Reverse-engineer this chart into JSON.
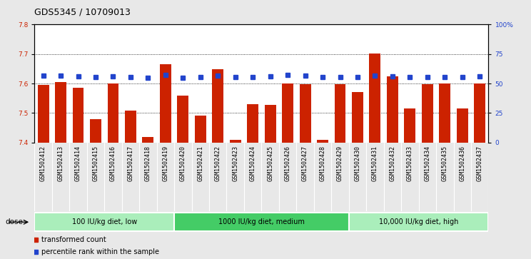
{
  "title": "GDS5345 / 10709013",
  "samples": [
    "GSM1502412",
    "GSM1502413",
    "GSM1502414",
    "GSM1502415",
    "GSM1502416",
    "GSM1502417",
    "GSM1502418",
    "GSM1502419",
    "GSM1502420",
    "GSM1502421",
    "GSM1502422",
    "GSM1502423",
    "GSM1502424",
    "GSM1502425",
    "GSM1502426",
    "GSM1502427",
    "GSM1502428",
    "GSM1502429",
    "GSM1502430",
    "GSM1502431",
    "GSM1502432",
    "GSM1502433",
    "GSM1502434",
    "GSM1502435",
    "GSM1502436",
    "GSM1502437"
  ],
  "bar_values": [
    7.595,
    7.605,
    7.585,
    7.478,
    7.6,
    7.508,
    7.418,
    7.665,
    7.558,
    7.49,
    7.648,
    7.408,
    7.53,
    7.527,
    7.6,
    7.598,
    7.408,
    7.598,
    7.57,
    7.703,
    7.625,
    7.515,
    7.598,
    7.6,
    7.515,
    7.6
  ],
  "blue_values": [
    7.626,
    7.628,
    7.625,
    7.622,
    7.625,
    7.621,
    7.62,
    7.63,
    7.62,
    7.622,
    7.627,
    7.621,
    7.622,
    7.624,
    7.629,
    7.628,
    7.621,
    7.622,
    7.621,
    7.628,
    7.625,
    7.623,
    7.622,
    7.623,
    7.622,
    7.624
  ],
  "bar_color": "#cc2200",
  "blue_color": "#2244cc",
  "ylim": [
    7.4,
    7.8
  ],
  "yticks_left": [
    7.4,
    7.5,
    7.6,
    7.7,
    7.8
  ],
  "yticks_right_labels": [
    "0",
    "25",
    "50",
    "75",
    "100%"
  ],
  "yticks_right_vals": [
    7.4,
    7.5,
    7.6,
    7.7,
    7.8
  ],
  "groups": [
    {
      "label": "100 IU/kg diet, low",
      "start": 0,
      "end": 8,
      "color": "#aaeebb"
    },
    {
      "label": "1000 IU/kg diet, medium",
      "start": 8,
      "end": 18,
      "color": "#44cc66"
    },
    {
      "label": "10,000 IU/kg diet, high",
      "start": 18,
      "end": 26,
      "color": "#aaeebb"
    }
  ],
  "legend_items": [
    {
      "label": "transformed count",
      "color": "#cc2200"
    },
    {
      "label": "percentile rank within the sample",
      "color": "#2244cc"
    }
  ],
  "dose_label": "dose",
  "background_color": "#e8e8e8",
  "xtick_bg": "#d0d0d0",
  "plot_bg": "#ffffff",
  "title_fontsize": 9,
  "tick_fontsize": 6.5,
  "xtick_fontsize": 6
}
